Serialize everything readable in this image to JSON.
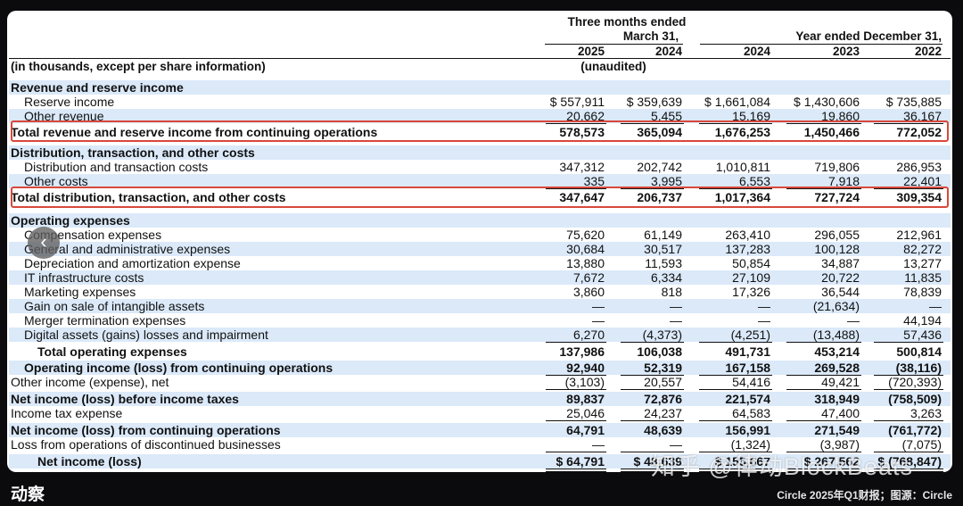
{
  "header": {
    "three_months_ended": "Three months ended",
    "march_31": "March 31,",
    "year_ended": "Year ended December 31,",
    "years": [
      "2025",
      "2024",
      "2024",
      "2023",
      "2022"
    ],
    "unaudited": "(unaudited)",
    "units_note": "(in thousands, except per share information)"
  },
  "rows": [
    {
      "label": "Revenue and reserve income",
      "bold": true,
      "indent": 0,
      "values": []
    },
    {
      "label": "Reserve income",
      "indent": 1,
      "values": [
        "$ 557,911",
        "$ 359,639",
        "$ 1,661,084",
        "$ 1,430,606",
        "$ 735,885"
      ]
    },
    {
      "label": "Other revenue",
      "indent": 1,
      "values": [
        "20,662",
        "5,455",
        "15,169",
        "19,860",
        "36,167"
      ]
    },
    {
      "label": "Total revenue and reserve income from continuing operations",
      "bold": true,
      "indent": 0,
      "values": [
        "578,573",
        "365,094",
        "1,676,253",
        "1,450,466",
        "772,052"
      ]
    },
    {
      "label": "Distribution, transaction, and other costs",
      "bold": true,
      "indent": 0,
      "values": []
    },
    {
      "label": "Distribution and transaction costs",
      "indent": 1,
      "values": [
        "347,312",
        "202,742",
        "1,010,811",
        "719,806",
        "286,953"
      ]
    },
    {
      "label": "Other costs",
      "indent": 1,
      "values": [
        "335",
        "3,995",
        "6,553",
        "7,918",
        "22,401"
      ]
    },
    {
      "label": "Total distribution, transaction, and other costs",
      "bold": true,
      "indent": 0,
      "values": [
        "347,647",
        "206,737",
        "1,017,364",
        "727,724",
        "309,354"
      ]
    },
    {
      "label": "Operating expenses",
      "bold": true,
      "indent": 0,
      "values": []
    },
    {
      "label": "Compensation expenses",
      "indent": 1,
      "values": [
        "75,620",
        "61,149",
        "263,410",
        "296,055",
        "212,961"
      ]
    },
    {
      "label": "General and administrative expenses",
      "indent": 1,
      "values": [
        "30,684",
        "30,517",
        "137,283",
        "100,128",
        "82,272"
      ]
    },
    {
      "label": "Depreciation and amortization expense",
      "indent": 1,
      "values": [
        "13,880",
        "11,593",
        "50,854",
        "34,887",
        "13,277"
      ]
    },
    {
      "label": "IT infrastructure costs",
      "indent": 1,
      "values": [
        "7,672",
        "6,334",
        "27,109",
        "20,722",
        "11,835"
      ]
    },
    {
      "label": "Marketing expenses",
      "indent": 1,
      "values": [
        "3,860",
        "818",
        "17,326",
        "36,544",
        "78,839"
      ]
    },
    {
      "label": "Gain on sale of intangible assets",
      "indent": 1,
      "values": [
        "—",
        "—",
        "—",
        "(21,634)",
        "—"
      ]
    },
    {
      "label": "Merger termination expenses",
      "indent": 1,
      "values": [
        "—",
        "—",
        "—",
        "—",
        "44,194"
      ]
    },
    {
      "label": "Digital assets (gains) losses and impairment",
      "indent": 1,
      "values": [
        "6,270",
        "(4,373)",
        "(4,251)",
        "(13,488)",
        "57,436"
      ]
    },
    {
      "label": "Total operating expenses",
      "bold": true,
      "indent": 2,
      "values": [
        "137,986",
        "106,038",
        "491,731",
        "453,214",
        "500,814"
      ]
    },
    {
      "label": "Operating income (loss) from continuing operations",
      "bold": true,
      "indent": 1,
      "values": [
        "92,940",
        "52,319",
        "167,158",
        "269,528",
        "(38,116)"
      ]
    },
    {
      "label": "Other income (expense), net",
      "indent": 0,
      "values": [
        "(3,103)",
        "20,557",
        "54,416",
        "49,421",
        "(720,393)"
      ]
    },
    {
      "label": "Net income (loss) before income taxes",
      "bold": true,
      "indent": 0,
      "values": [
        "89,837",
        "72,876",
        "221,574",
        "318,949",
        "(758,509)"
      ]
    },
    {
      "label": "Income tax expense",
      "indent": 0,
      "values": [
        "25,046",
        "24,237",
        "64,583",
        "47,400",
        "3,263"
      ]
    },
    {
      "label": "Net income (loss) from continuing operations",
      "bold": true,
      "indent": 0,
      "values": [
        "64,791",
        "48,639",
        "156,991",
        "271,549",
        "(761,772)"
      ]
    },
    {
      "label": "Loss from operations of discontinued businesses",
      "indent": 0,
      "values": [
        "—",
        "—",
        "(1,324)",
        "(3,987)",
        "(7,075)"
      ]
    },
    {
      "label": "Net income (loss)",
      "bold": true,
      "indent": 2,
      "values": [
        "$ 64,791",
        "$ 48,639",
        "$ 155,667",
        "$ 267,562",
        "$ (768,847)"
      ]
    }
  ],
  "overlay": {
    "nav_icon_glyph": "‹",
    "watermark": "知乎 @律动BlockBeats",
    "logo": "动察",
    "credit": "Circle 2025年Q1财报；图源：Circle"
  }
}
